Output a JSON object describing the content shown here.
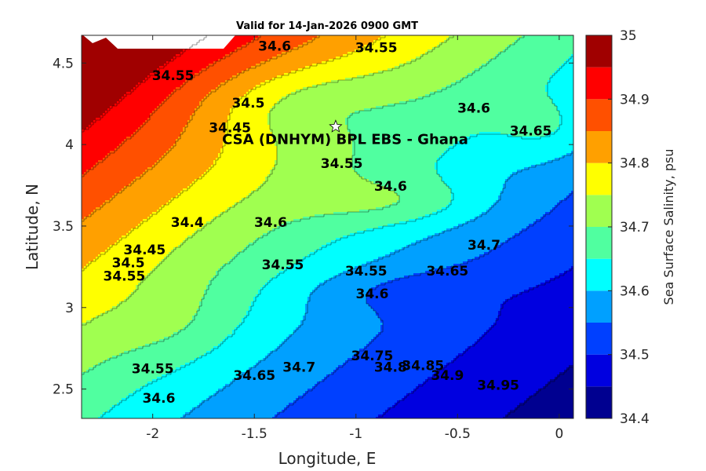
{
  "chart_data": {
    "type": "contour",
    "title": "Valid for 14-Jan-2026 0900 GMT",
    "xlabel": "Longitude, E",
    "ylabel": "Latitude, N",
    "xlim": [
      -2.35,
      0.07
    ],
    "ylim": [
      2.32,
      4.67
    ],
    "xticks": [
      -2,
      -1.5,
      -1,
      -0.5,
      0
    ],
    "xtick_labels": [
      "-2",
      "-1.5",
      "-1",
      "-0.5",
      "0"
    ],
    "yticks": [
      2.5,
      3,
      3.5,
      4,
      4.5
    ],
    "ytick_labels": [
      "2.5",
      "3",
      "3.5",
      "4",
      "4.5"
    ],
    "colorbar": {
      "label": "Sea Surface Salinity, psu",
      "min": 34.4,
      "max": 35,
      "ticks": [
        34.4,
        34.5,
        34.6,
        34.7,
        34.8,
        34.9,
        35
      ],
      "tick_labels": [
        "34.4",
        "34.5",
        "34.6",
        "34.7",
        "34.8",
        "34.9",
        "35"
      ],
      "levels": [
        {
          "lo": 34.4,
          "hi": 34.45,
          "color": "#000090"
        },
        {
          "lo": 34.45,
          "hi": 34.5,
          "color": "#0000e0"
        },
        {
          "lo": 34.5,
          "hi": 34.55,
          "color": "#0040ff"
        },
        {
          "lo": 34.55,
          "hi": 34.6,
          "color": "#00a0ff"
        },
        {
          "lo": 34.6,
          "hi": 34.65,
          "color": "#00ffff"
        },
        {
          "lo": 34.65,
          "hi": 34.7,
          "color": "#50ffa0"
        },
        {
          "lo": 34.7,
          "hi": 34.75,
          "color": "#a0ff50"
        },
        {
          "lo": 34.75,
          "hi": 34.8,
          "color": "#ffff00"
        },
        {
          "lo": 34.8,
          "hi": 34.85,
          "color": "#ffa000"
        },
        {
          "lo": 34.85,
          "hi": 34.9,
          "color": "#ff5000"
        },
        {
          "lo": 34.9,
          "hi": 34.95,
          "color": "#ff0000"
        },
        {
          "lo": 34.95,
          "hi": 35,
          "color": "#a00000"
        }
      ]
    },
    "contour_labels": [
      {
        "text": "34.6",
        "lon": -1.4,
        "lat": 4.6
      },
      {
        "text": "34.55",
        "lon": -0.9,
        "lat": 4.59
      },
      {
        "text": "34.55",
        "lon": -1.9,
        "lat": 4.42
      },
      {
        "text": "34.5",
        "lon": -1.53,
        "lat": 4.25
      },
      {
        "text": "34.45",
        "lon": -1.62,
        "lat": 4.1
      },
      {
        "text": "34.6",
        "lon": -0.42,
        "lat": 4.22
      },
      {
        "text": "34.65",
        "lon": -0.14,
        "lat": 4.08
      },
      {
        "text": "34.55",
        "lon": -1.07,
        "lat": 3.88
      },
      {
        "text": "34.6",
        "lon": -0.83,
        "lat": 3.74
      },
      {
        "text": "34.4",
        "lon": -1.83,
        "lat": 3.52
      },
      {
        "text": "34.6",
        "lon": -1.42,
        "lat": 3.52
      },
      {
        "text": "34.45",
        "lon": -2.04,
        "lat": 3.35
      },
      {
        "text": "34.5",
        "lon": -2.12,
        "lat": 3.27
      },
      {
        "text": "34.55",
        "lon": -2.14,
        "lat": 3.19
      },
      {
        "text": "34.55",
        "lon": -1.36,
        "lat": 3.26
      },
      {
        "text": "34.55",
        "lon": -0.95,
        "lat": 3.22
      },
      {
        "text": "34.65",
        "lon": -0.55,
        "lat": 3.22
      },
      {
        "text": "34.7",
        "lon": -0.37,
        "lat": 3.38
      },
      {
        "text": "34.6",
        "lon": -0.92,
        "lat": 3.08
      },
      {
        "text": "34.55",
        "lon": -2.0,
        "lat": 2.62
      },
      {
        "text": "34.6",
        "lon": -1.97,
        "lat": 2.44
      },
      {
        "text": "34.65",
        "lon": -1.5,
        "lat": 2.58
      },
      {
        "text": "34.7",
        "lon": -1.28,
        "lat": 2.63
      },
      {
        "text": "34.75",
        "lon": -0.92,
        "lat": 2.7
      },
      {
        "text": "34.8",
        "lon": -0.83,
        "lat": 2.63
      },
      {
        "text": "34.85",
        "lon": -0.67,
        "lat": 2.64
      },
      {
        "text": "34.9",
        "lon": -0.55,
        "lat": 2.58
      },
      {
        "text": "34.95",
        "lon": -0.3,
        "lat": 2.52
      }
    ],
    "site": {
      "label": "CSA (DNHYM) BPL EBS  - Ghana",
      "lon": -1.1,
      "lat": 4.11
    }
  }
}
